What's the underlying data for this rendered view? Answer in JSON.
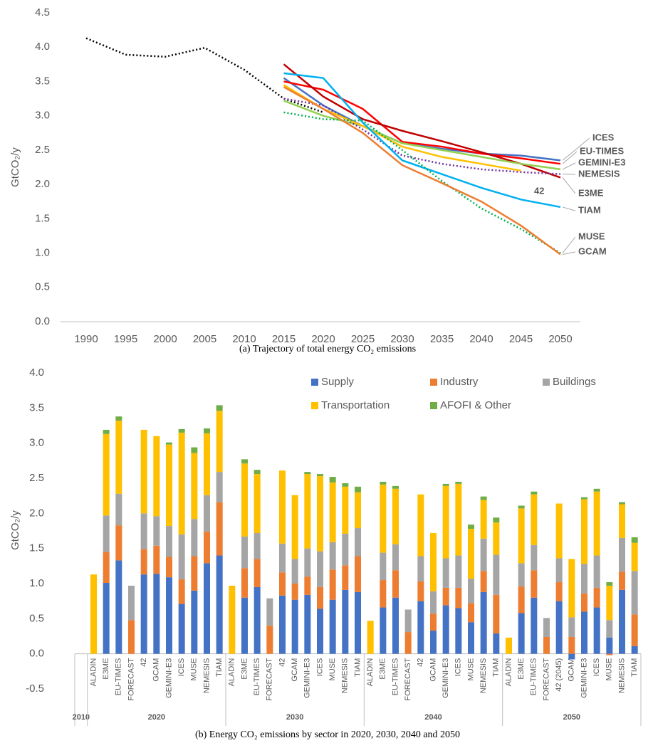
{
  "chart_data": [
    {
      "type": "line",
      "caption": "(a) Trajectory of total energy CO₂ emissions",
      "y_label": "GtCO₂/y",
      "xlim": [
        1990,
        2050
      ],
      "xticks": [
        1990,
        1995,
        2000,
        2005,
        2010,
        2015,
        2020,
        2025,
        2030,
        2035,
        2040,
        2045,
        2050
      ],
      "ylim": [
        0,
        4.5
      ],
      "yticks": [
        {
          "value": 0,
          "label": "0.0"
        },
        0.5,
        {
          "value": 1,
          "label": "1.0"
        },
        1.5,
        {
          "value": 2,
          "label": "2.0"
        },
        2.5,
        {
          "value": 3,
          "label": "3.0"
        },
        3.5,
        {
          "value": 4,
          "label": "4.0"
        },
        4.5
      ],
      "grid": false,
      "series": [
        {
          "color": "#000000",
          "dashed": true,
          "x": [
            1990,
            1995,
            2000,
            2005,
            2010,
            2015,
            2020
          ],
          "values": [
            4.13,
            3.89,
            3.86,
            3.99,
            3.67,
            3.25,
            3.05
          ]
        },
        {
          "name": "ICES",
          "color": "#4472c4",
          "x": [
            2015,
            2020,
            2025,
            2030,
            2035,
            2040,
            2045,
            2050
          ],
          "values": [
            3.55,
            3.15,
            2.85,
            2.6,
            2.52,
            2.45,
            2.42,
            2.35
          ]
        },
        {
          "name": "EU-TIMES",
          "color": "#ff0000",
          "x": [
            2015,
            2020,
            2025,
            2030,
            2035,
            2040,
            2045,
            2050
          ],
          "values": [
            3.5,
            3.38,
            3.1,
            2.62,
            2.55,
            2.45,
            2.38,
            2.3
          ]
        },
        {
          "name": "E3ME",
          "color": "#c00000",
          "x": [
            2015,
            2020,
            2025,
            2030,
            2035,
            2040,
            2045,
            2050
          ],
          "values": [
            3.75,
            3.28,
            2.95,
            2.78,
            2.63,
            2.47,
            2.3,
            2.1
          ]
        },
        {
          "name": "GEMINI-E3",
          "color": "#92d050",
          "x": [
            2015,
            2020,
            2025,
            2030,
            2035,
            2040,
            2045,
            2050
          ],
          "values": [
            3.22,
            3.0,
            2.85,
            2.6,
            2.5,
            2.4,
            2.3,
            2.22
          ]
        },
        {
          "name": "NEMESIS",
          "color": "#7030a0",
          "dashed": true,
          "x": [
            2015,
            2020,
            2025,
            2030,
            2035,
            2040,
            2045,
            2050
          ],
          "values": [
            3.25,
            3.15,
            2.8,
            2.42,
            2.3,
            2.22,
            2.18,
            2.15
          ]
        },
        {
          "name": "42",
          "color": "#ffc000",
          "x": [
            2015,
            2020,
            2025,
            2030,
            2035,
            2040,
            2045,
            2050
          ],
          "values": [
            3.45,
            3.1,
            2.85,
            2.55,
            2.4,
            2.3,
            2.2,
            null
          ]
        },
        {
          "name": "TIAM",
          "color": "#00b0f0",
          "x": [
            2015,
            2020,
            2025,
            2030,
            2035,
            2040,
            2045,
            2050
          ],
          "values": [
            3.62,
            3.55,
            2.9,
            2.35,
            2.15,
            1.95,
            1.78,
            1.67
          ]
        },
        {
          "name": "MUSE",
          "color": "#00b050",
          "dashed": true,
          "x": [
            2015,
            2020,
            2025,
            2030,
            2035,
            2040,
            2045,
            2050
          ],
          "values": [
            3.05,
            2.95,
            2.93,
            2.5,
            2.05,
            1.65,
            1.35,
            1.0
          ]
        },
        {
          "name": "GCAM",
          "color": "#ed7d31",
          "x": [
            2015,
            2020,
            2025,
            2030,
            2035,
            2040,
            2045,
            2050
          ],
          "values": [
            3.42,
            3.1,
            2.75,
            2.28,
            2.02,
            1.75,
            1.4,
            0.98
          ]
        }
      ]
    },
    {
      "type": "stacked_bar",
      "caption": "(b) Energy CO₂ emissions by sector in 2020, 2030, 2040 and 2050",
      "y_label": "GtCO₂/y",
      "ylim": [
        -0.5,
        4.0
      ],
      "yticks": [
        -0.5,
        {
          "value": 0,
          "label": "0.0"
        },
        0.5,
        {
          "value": 1,
          "label": "1.0"
        },
        1.5,
        {
          "value": 2,
          "label": "2.0"
        },
        2.5,
        {
          "value": 3,
          "label": "3.0"
        },
        3.5,
        {
          "value": 4,
          "label": "4.0"
        }
      ],
      "grid": false,
      "legend": "top-right",
      "groups": [
        {
          "name": "2010",
          "categories": [
            null
          ]
        },
        {
          "name": "2020",
          "categories": [
            "ALADIN",
            "E3ME",
            "EU-TIMES",
            "FORECAST",
            "42",
            "GCAM",
            "GEMINI-E3",
            "ICES",
            "MUSE",
            "NEMESIS",
            "TIAM"
          ]
        },
        {
          "name": "2030",
          "categories": [
            "ALADIN",
            "E3ME",
            "EU-TIMES",
            "FORECAST",
            "42",
            "GCAM",
            "GEMINI-E3",
            "ICES",
            "MUSE",
            "NEMESIS",
            "TIAM"
          ]
        },
        {
          "name": "2040",
          "categories": [
            "ALADIN",
            "E3ME",
            "EU-TIMES",
            "FORECAST",
            "42",
            "GCAM",
            "GEMINI-E3",
            "ICES",
            "MUSE",
            "NEMESIS",
            "TIAM"
          ]
        },
        {
          "name": "2050",
          "categories": [
            "ALADIN",
            "E3ME",
            "EU-TIMES",
            "FORECAST",
            "42 (2045)",
            "GCAM",
            "GEMINI-E3",
            "ICES",
            "MUSE",
            "NEMESIS",
            "TIAM"
          ]
        }
      ],
      "series": [
        {
          "name": "Supply",
          "color": "#4472c4",
          "values": [
            null,
            0,
            1.01,
            1.33,
            0,
            1.13,
            1.14,
            1.09,
            0.71,
            0.9,
            1.29,
            1.4,
            0,
            0.8,
            0.95,
            0,
            0.83,
            0.77,
            0.84,
            0.64,
            0.77,
            0.91,
            0.88,
            0,
            0.66,
            0.8,
            0,
            0.75,
            0.33,
            0.69,
            0.65,
            0.45,
            0.88,
            0.29,
            0,
            0.58,
            0.8,
            0,
            0.75,
            -0.08,
            0.6,
            0.66,
            0.23,
            0.91,
            0.11
          ]
        },
        {
          "name": "Industry",
          "color": "#ed7d31",
          "values": [
            null,
            0,
            0.44,
            0.5,
            0.48,
            0.36,
            0.4,
            0.29,
            0.35,
            0.49,
            0.45,
            0.76,
            0,
            0.42,
            0.4,
            0.4,
            0.33,
            0.23,
            0.26,
            0.31,
            0.43,
            0.35,
            0.51,
            0,
            0.39,
            0.39,
            0.31,
            0.28,
            0.24,
            0.25,
            0.29,
            0.27,
            0.3,
            0.55,
            0,
            0.38,
            0.39,
            0.24,
            0.27,
            0.24,
            0.26,
            0.28,
            -0.02,
            0.26,
            0.45
          ]
        },
        {
          "name": "Buildings",
          "color": "#a5a5a5",
          "values": [
            null,
            0,
            0.52,
            0.45,
            0.49,
            0.51,
            0.42,
            0.44,
            0.64,
            0.53,
            0.52,
            0.43,
            0,
            0.45,
            0.37,
            0.39,
            0.41,
            0.35,
            0.4,
            0.51,
            0.39,
            0.45,
            0.4,
            0,
            0.39,
            0.37,
            0.32,
            0.36,
            0.32,
            0.42,
            0.46,
            0.35,
            0.46,
            0.57,
            0,
            0.33,
            0.36,
            0.27,
            0.34,
            0.28,
            0.42,
            0.46,
            0.25,
            0.48,
            0.62
          ]
        },
        {
          "name": "Transportation",
          "color": "#ffc000",
          "values": [
            null,
            1.13,
            1.16,
            1.04,
            0,
            1.19,
            1.14,
            1.16,
            1.45,
            0.94,
            0.88,
            0.87,
            0.97,
            1.04,
            0.84,
            0,
            1.04,
            0.91,
            1.06,
            1.07,
            0.85,
            0.67,
            0.51,
            0.47,
            0.97,
            0.79,
            0,
            0.88,
            0.83,
            1.03,
            1.02,
            0.71,
            0.55,
            0.46,
            0.23,
            0.78,
            0.72,
            0,
            0.78,
            0.83,
            0.92,
            0.91,
            0.49,
            0.48,
            0.4
          ]
        },
        {
          "name": "AFOFI & Other",
          "color": "#70ad47",
          "values": [
            null,
            0,
            0.06,
            0.06,
            0,
            0,
            0,
            0.03,
            0.05,
            0.08,
            0.07,
            0.08,
            0,
            0.06,
            0.06,
            0,
            0,
            0,
            0.03,
            0.03,
            0.08,
            0.05,
            0.08,
            0,
            0.04,
            0.04,
            0,
            0,
            0,
            0.03,
            0.03,
            0.06,
            0.05,
            0.07,
            0,
            0.04,
            0.04,
            0,
            0,
            0,
            0.03,
            0.04,
            0.05,
            0.03,
            0.08
          ]
        }
      ]
    }
  ]
}
